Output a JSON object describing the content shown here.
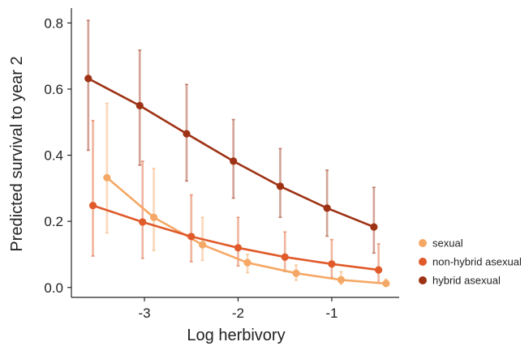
{
  "chart_data": {
    "type": "line",
    "title": "",
    "xlabel": "Log herbivory",
    "ylabel": "Predicted survival to year 2",
    "xlim": [
      -3.78,
      -0.28
    ],
    "ylim": [
      -0.03,
      0.845
    ],
    "xticks": [
      -3,
      -2,
      -1
    ],
    "xtick_labels": [
      "-3",
      "-2",
      "-1"
    ],
    "yticks": [
      0.0,
      0.2,
      0.4,
      0.6,
      0.8
    ],
    "ytick_labels": [
      "0.0",
      "0.2",
      "0.4",
      "0.6",
      "0.8"
    ],
    "grid": false,
    "legend_position": "right",
    "series": [
      {
        "name": "sexual",
        "color": "#F5A865",
        "points": [
          {
            "x": -3.4,
            "y": 0.332,
            "lo": 0.165,
            "hi": 0.557
          },
          {
            "x": -2.9,
            "y": 0.212,
            "lo": 0.112,
            "hi": 0.36
          },
          {
            "x": -2.38,
            "y": 0.129,
            "lo": 0.082,
            "hi": 0.212
          },
          {
            "x": -1.9,
            "y": 0.075,
            "lo": 0.045,
            "hi": 0.1
          },
          {
            "x": -1.38,
            "y": 0.043,
            "lo": 0.022,
            "hi": 0.068
          },
          {
            "x": -0.9,
            "y": 0.023,
            "lo": 0.01,
            "hi": 0.048
          },
          {
            "x": -0.42,
            "y": 0.012,
            "lo": 0.005,
            "hi": 0.025
          }
        ]
      },
      {
        "name": "non-hybrid asexual",
        "color": "#E05A2A",
        "points": [
          {
            "x": -3.55,
            "y": 0.248,
            "lo": 0.095,
            "hi": 0.505
          },
          {
            "x": -3.02,
            "y": 0.198,
            "lo": 0.088,
            "hi": 0.382
          },
          {
            "x": -2.5,
            "y": 0.154,
            "lo": 0.078,
            "hi": 0.28
          },
          {
            "x": -2.0,
            "y": 0.12,
            "lo": 0.065,
            "hi": 0.212
          },
          {
            "x": -1.5,
            "y": 0.092,
            "lo": 0.048,
            "hi": 0.168
          },
          {
            "x": -1.0,
            "y": 0.071,
            "lo": 0.03,
            "hi": 0.145
          },
          {
            "x": -0.5,
            "y": 0.053,
            "lo": 0.015,
            "hi": 0.132
          }
        ]
      },
      {
        "name": "hybrid asexual",
        "color": "#9E3214",
        "points": [
          {
            "x": -3.6,
            "y": 0.632,
            "lo": 0.415,
            "hi": 0.808
          },
          {
            "x": -3.05,
            "y": 0.55,
            "lo": 0.37,
            "hi": 0.718
          },
          {
            "x": -2.55,
            "y": 0.465,
            "lo": 0.322,
            "hi": 0.614
          },
          {
            "x": -2.05,
            "y": 0.382,
            "lo": 0.27,
            "hi": 0.508
          },
          {
            "x": -1.55,
            "y": 0.306,
            "lo": 0.212,
            "hi": 0.42
          },
          {
            "x": -1.05,
            "y": 0.24,
            "lo": 0.155,
            "hi": 0.355
          },
          {
            "x": -0.55,
            "y": 0.183,
            "lo": 0.104,
            "hi": 0.303
          }
        ]
      }
    ]
  }
}
